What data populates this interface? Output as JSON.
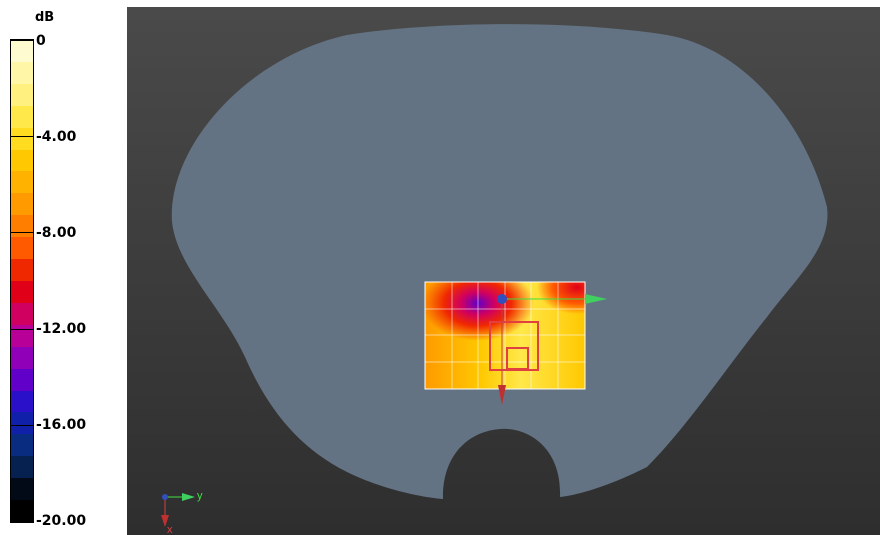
{
  "legend": {
    "unit": "dB",
    "ticks": [
      "0",
      "-4.00",
      "-8.00",
      "-12.00",
      "-16.00",
      "-20.00"
    ],
    "colors": [
      "#fffbd0",
      "#fff6a8",
      "#fff080",
      "#ffe84a",
      "#ffdc20",
      "#ffc800",
      "#ffb200",
      "#ff9a00",
      "#ff7e00",
      "#ff5a00",
      "#f02800",
      "#e00018",
      "#d00060",
      "#b80098",
      "#9000b8",
      "#6000c8",
      "#2a10c8",
      "#1020a8",
      "#0a2c80",
      "#062050",
      "#020a18",
      "#000000"
    ]
  },
  "axes": {
    "y_label": "y",
    "x_label": "x"
  }
}
